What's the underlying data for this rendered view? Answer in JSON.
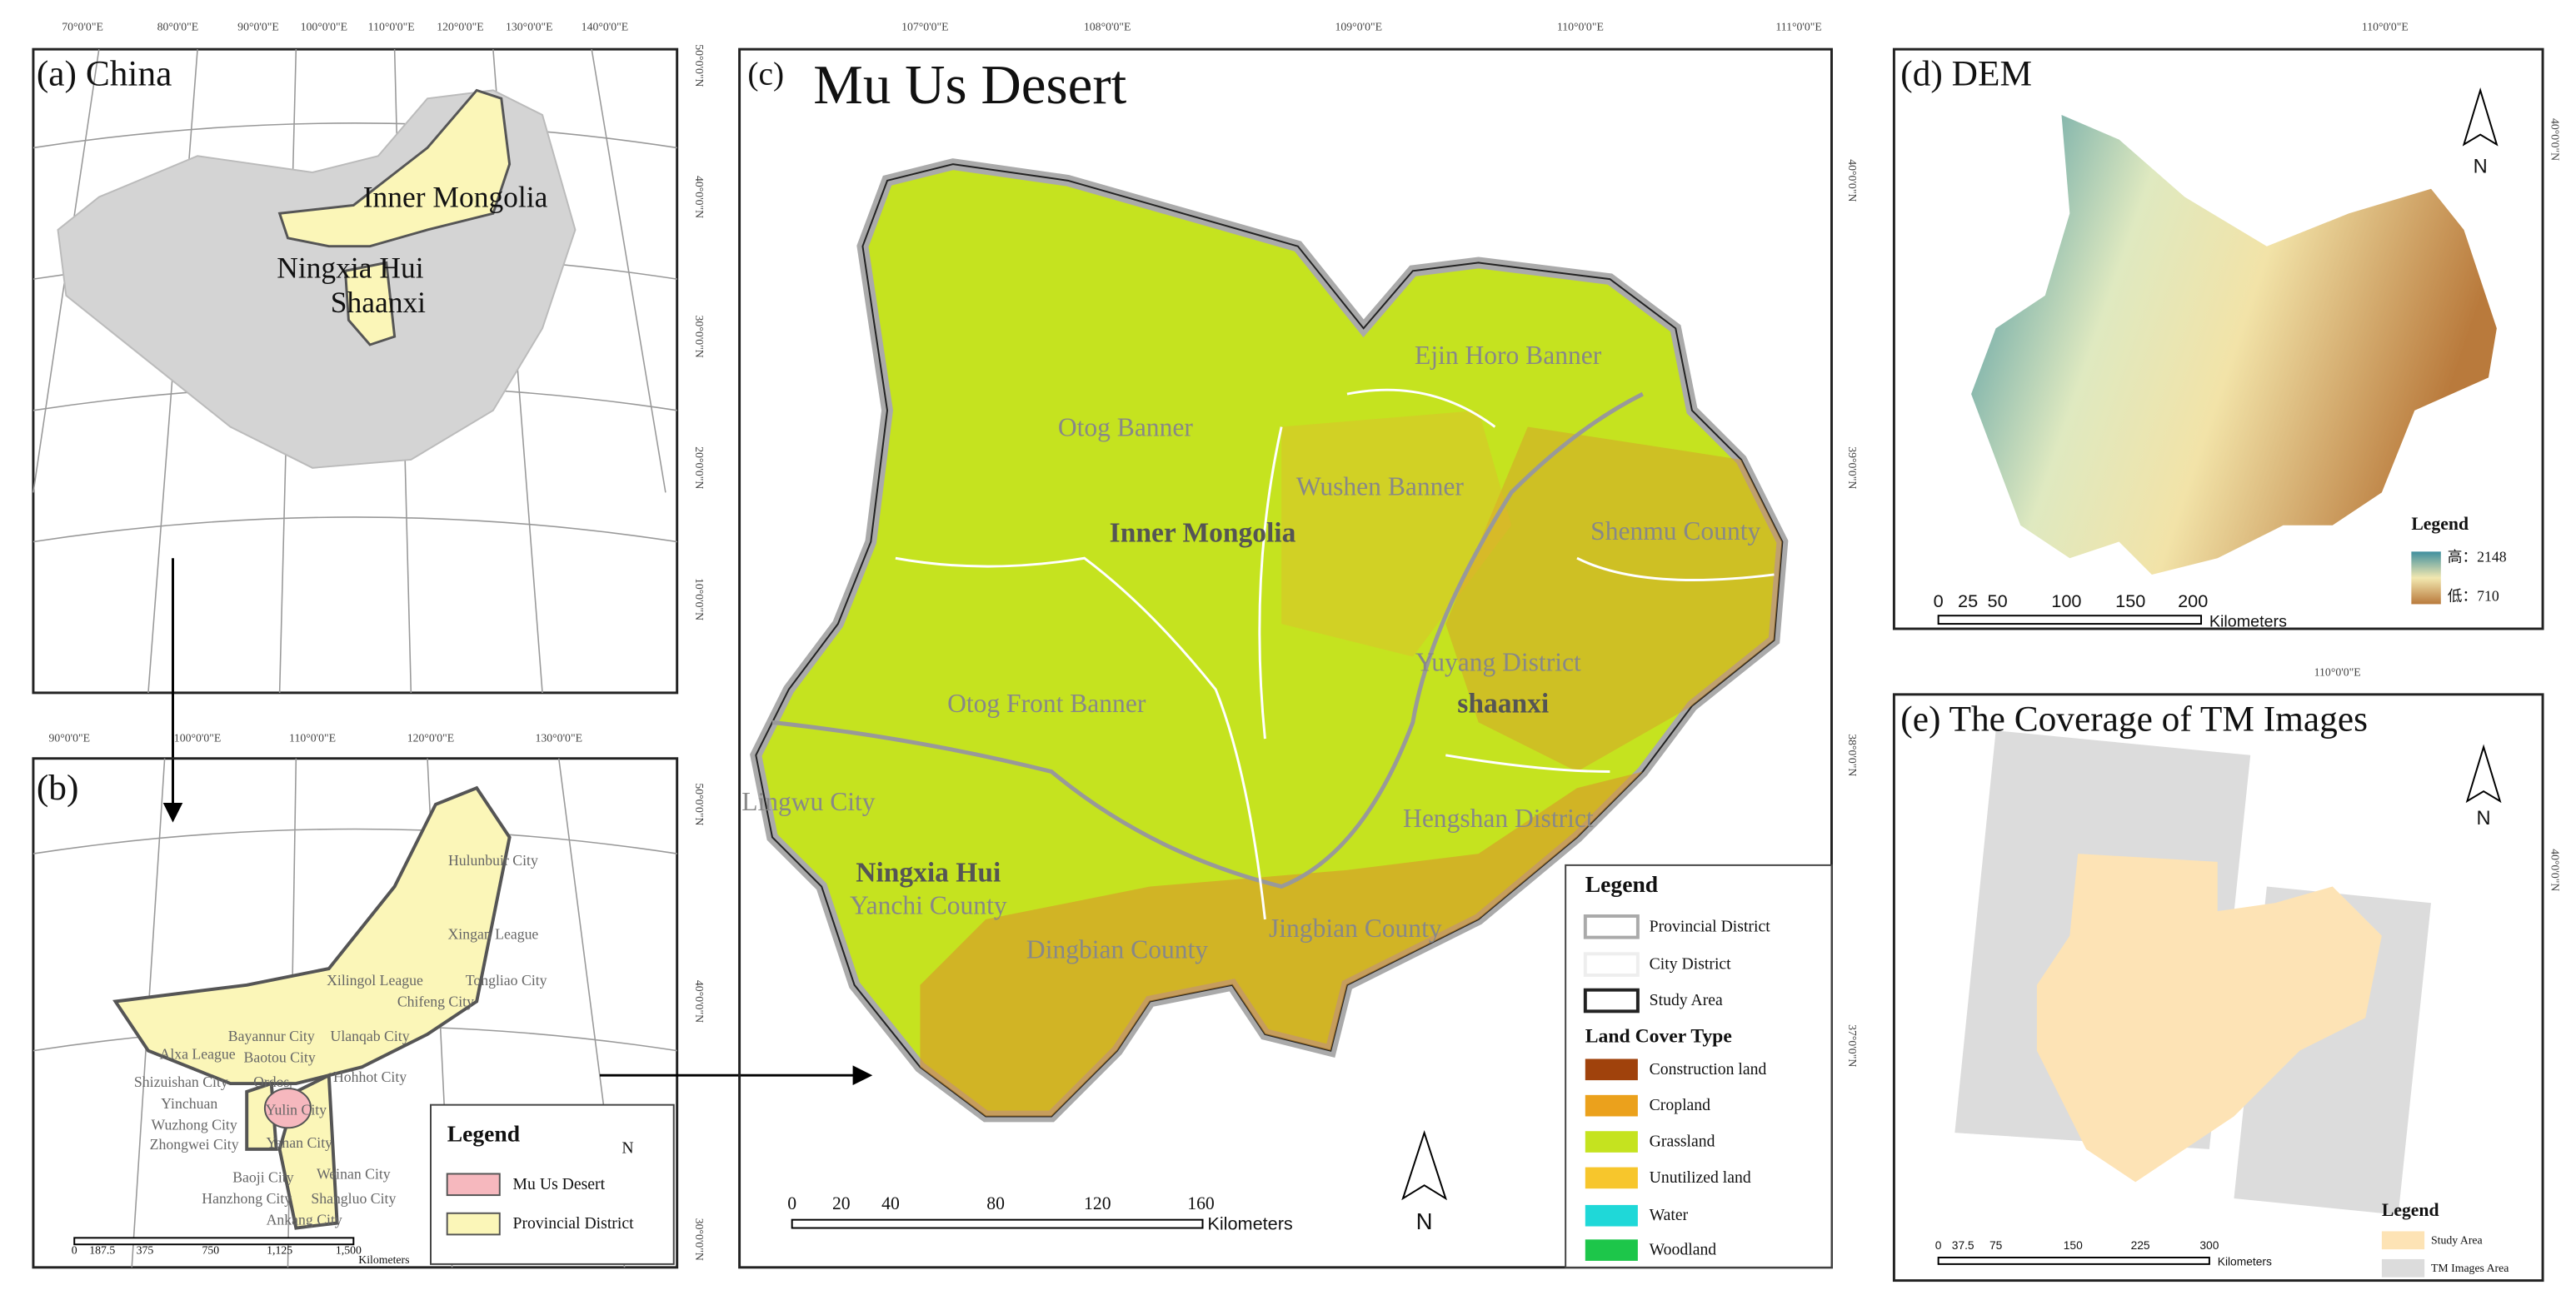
{
  "panel_a": {
    "title": "(a) China",
    "lon_labels": [
      "70°0'0\"E",
      "80°0'0\"E",
      "90°0'0\"E",
      "100°0'0\"E",
      "110°0'0\"E",
      "120°0'0\"E",
      "130°0'0\"E",
      "140°0'0\"E"
    ],
    "lat_labels": [
      "50°0'0\"N",
      "40°0'0\"N",
      "30°0'0\"N",
      "20°0'0\"N",
      "10°0'0\"N"
    ],
    "places": [
      "Inner Mongolia",
      "Ningxia Hui",
      "Shaanxi"
    ]
  },
  "panel_b": {
    "title": "(b)",
    "lon_labels": [
      "90°0'0\"E",
      "100°0'0\"E",
      "110°0'0\"E",
      "120°0'0\"E",
      "130°0'0\"E"
    ],
    "lat_labels": [
      "50°0'0\"N",
      "40°0'0\"N",
      "30°0'0\"N"
    ],
    "places": [
      "Hulunbuir City",
      "Xingan League",
      "Xilingol League",
      "Tongliao City",
      "Chifeng City",
      "Bayannur City",
      "Ulanqab City",
      "Alxa League",
      "Baotou City",
      "Shizuishan City",
      "Ordos",
      "Hohhot City",
      "Yinchuan",
      "Yulin City",
      "Wuzhong City",
      "Yanan City",
      "Zhongwei City",
      "Baoji City",
      "Weinan City",
      "Hanzhong City",
      "Shangluo City",
      "Ankang City"
    ],
    "legend": {
      "title": "Legend",
      "items": [
        "Mu Us Desert",
        "Provincial District"
      ]
    },
    "north": "N",
    "scale": {
      "ticks": [
        "0",
        "187.5",
        "375",
        "750",
        "1,125",
        "1,500"
      ],
      "unit": "Kilometers"
    }
  },
  "panel_c": {
    "title": "(c)",
    "name": "Mu Us Desert",
    "lon_labels": [
      "107°0'0\"E",
      "108°0'0\"E",
      "109°0'0\"E",
      "110°0'0\"E",
      "111°0'0\"E"
    ],
    "lat_labels": [
      "40°0'0\"N",
      "39°0'0\"N",
      "38°0'0\"N",
      "37°0'0\"N"
    ],
    "places": [
      "Otog Banner",
      "Wushen Banner",
      "Ejin Horo Banner",
      "Shenmu County",
      "Inner Mongolia",
      "Otog Front Banner",
      "Yuyang District",
      "shaanxi",
      "Lingwu City",
      "Ningxia Hui",
      "Yanchi County",
      "Dingbian County",
      "Jingbian County",
      "Hengshan District"
    ],
    "legend": {
      "title": "Legend",
      "items": [
        "Provincial District",
        "City District",
        "Study Area"
      ],
      "subtitle": "Land Cover Type",
      "classes": [
        "Construction land",
        "Cropland",
        "Grassland",
        "Unutilized land",
        "Water",
        "Woodland"
      ]
    },
    "north": "N",
    "scale": {
      "ticks": [
        "0",
        "20",
        "40",
        "80",
        "120",
        "160"
      ],
      "unit": "Kilometers"
    }
  },
  "panel_d": {
    "title": "(d) DEM",
    "lon_labels": [
      "110°0'0\"E"
    ],
    "lat_labels": [
      "40°0'0\"N"
    ],
    "north": "N",
    "legend": {
      "title": "Legend",
      "high": "高：2148",
      "low": "低：710"
    },
    "scale": {
      "ticks": [
        "0",
        "25",
        "50",
        "100",
        "150",
        "200"
      ],
      "unit": "Kilometers"
    }
  },
  "panel_e": {
    "title": "(e) The Coverage of TM Images",
    "lon_labels": [
      "110°0'0\"E"
    ],
    "lat_labels": [
      "40°0'0\"N"
    ],
    "north": "N",
    "legend": {
      "title": "Legend",
      "items": [
        "Study Area",
        "TM Images Area"
      ]
    },
    "scale": {
      "ticks": [
        "0",
        "37.5",
        "75",
        "150",
        "225",
        "300"
      ],
      "unit": "Kilometers"
    }
  }
}
